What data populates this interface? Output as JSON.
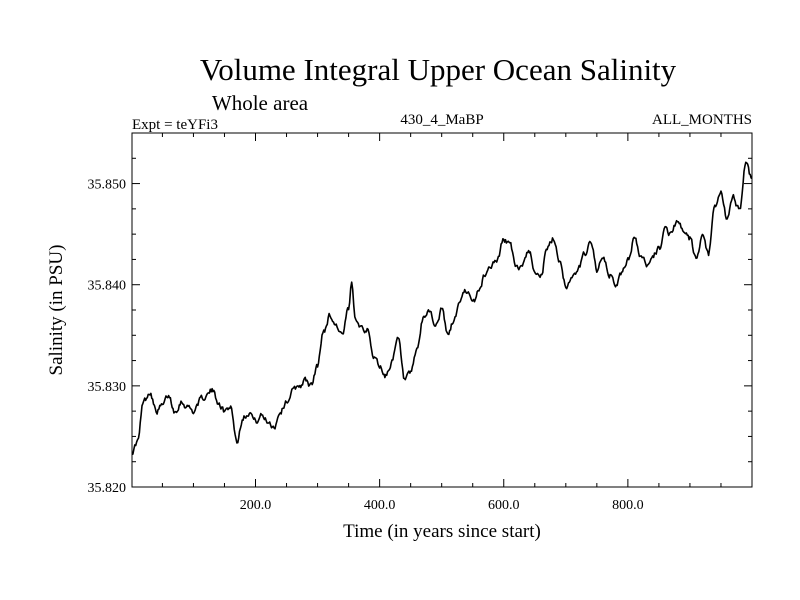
{
  "chart_data": {
    "type": "line",
    "title": "Volume Integral Upper Ocean Salinity",
    "subtitle": "Whole area",
    "header_left": "Expt = teYFi3",
    "header_center": "430_4_MaBP",
    "header_right": "ALL_MONTHS",
    "xlabel": "Time (in years since start)",
    "ylabel": "Salinity (in PSU)",
    "xlim": [
      1,
      1000
    ],
    "ylim": [
      35.82,
      35.855
    ],
    "x_ticks": [
      200,
      400,
      600,
      800
    ],
    "x_tick_labels": [
      "200.0",
      "400.0",
      "600.0",
      "800.0"
    ],
    "y_ticks": [
      35.82,
      35.83,
      35.84,
      35.85
    ],
    "y_tick_labels": [
      "35.820",
      "35.830",
      "35.840",
      "35.850"
    ],
    "grid": false,
    "series": [
      {
        "name": "salinity",
        "x": [
          1,
          10,
          20,
          30,
          40,
          50,
          60,
          70,
          80,
          90,
          100,
          110,
          120,
          130,
          140,
          150,
          160,
          170,
          180,
          190,
          200,
          210,
          220,
          230,
          240,
          250,
          260,
          270,
          280,
          290,
          300,
          310,
          320,
          330,
          340,
          350,
          355,
          360,
          370,
          380,
          390,
          400,
          410,
          420,
          430,
          440,
          450,
          460,
          470,
          480,
          490,
          500,
          510,
          520,
          530,
          540,
          550,
          560,
          570,
          580,
          590,
          600,
          610,
          620,
          630,
          640,
          650,
          660,
          670,
          680,
          690,
          700,
          710,
          720,
          730,
          740,
          750,
          760,
          770,
          780,
          790,
          800,
          810,
          820,
          830,
          840,
          850,
          860,
          870,
          880,
          890,
          900,
          910,
          920,
          930,
          940,
          950,
          960,
          970,
          980,
          990,
          1000
        ],
        "values": [
          35.8235,
          35.8245,
          35.8285,
          35.8295,
          35.8275,
          35.828,
          35.829,
          35.8275,
          35.8285,
          35.828,
          35.8275,
          35.8285,
          35.829,
          35.8295,
          35.8285,
          35.8275,
          35.828,
          35.8245,
          35.827,
          35.8275,
          35.8265,
          35.827,
          35.8265,
          35.826,
          35.8275,
          35.8285,
          35.8295,
          35.83,
          35.8305,
          35.83,
          35.832,
          35.8355,
          35.837,
          35.836,
          35.835,
          35.8375,
          35.84,
          35.837,
          35.836,
          35.8355,
          35.833,
          35.832,
          35.831,
          35.8325,
          35.8345,
          35.8305,
          35.831,
          35.8335,
          35.8365,
          35.8375,
          35.836,
          35.8375,
          35.835,
          35.8365,
          35.8385,
          35.8395,
          35.838,
          35.8395,
          35.841,
          35.842,
          35.8425,
          35.8445,
          35.844,
          35.8415,
          35.842,
          35.8435,
          35.8415,
          35.841,
          35.8435,
          35.8445,
          35.8425,
          35.84,
          35.8405,
          35.8415,
          35.843,
          35.8445,
          35.8415,
          35.8425,
          35.841,
          35.84,
          35.841,
          35.8425,
          35.8445,
          35.843,
          35.842,
          35.843,
          35.8435,
          35.8455,
          35.845,
          35.8465,
          35.845,
          35.8445,
          35.8425,
          35.8445,
          35.843,
          35.8475,
          35.849,
          35.8465,
          35.8485,
          35.8475,
          35.852,
          35.8505
        ]
      }
    ]
  }
}
